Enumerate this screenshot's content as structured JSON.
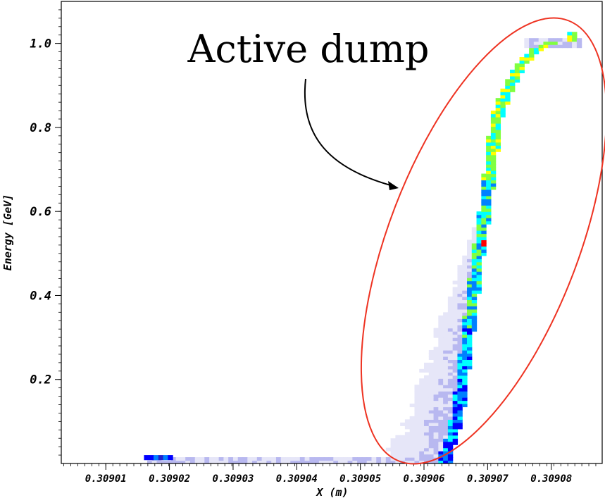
{
  "chart_data": {
    "type": "heatmap",
    "title": "",
    "xlabel": "X (m)",
    "ylabel": "Energy [GeV]",
    "xlim": [
      0.309003,
      0.309088
    ],
    "ylim": [
      0.0,
      1.1
    ],
    "x_ticks": [
      {
        "value": 0.30901,
        "label": "0.30901"
      },
      {
        "value": 0.30902,
        "label": "0.30902"
      },
      {
        "value": 0.30903,
        "label": "0.30903"
      },
      {
        "value": 0.30904,
        "label": "0.30904"
      },
      {
        "value": 0.30905,
        "label": "0.30905"
      },
      {
        "value": 0.30906,
        "label": "0.30906"
      },
      {
        "value": 0.30907,
        "label": "0.30907"
      },
      {
        "value": 0.30908,
        "label": "0.30908"
      }
    ],
    "y_ticks": [
      {
        "value": 0.2,
        "label": "0.2"
      },
      {
        "value": 0.4,
        "label": "0.4"
      },
      {
        "value": 0.6,
        "label": "0.6"
      },
      {
        "value": 0.8,
        "label": "0.8"
      },
      {
        "value": 1.0,
        "label": "1.0"
      }
    ],
    "grid": false,
    "colormap": [
      "#ffffff",
      "#e6e6f8",
      "#b8b8f0",
      "#7070e0",
      "#2020d0",
      "#0000ff",
      "#0080ff",
      "#00ffff",
      "#80ff40",
      "#ffff00",
      "#ff0000"
    ],
    "ridge": [
      {
        "x": 0.309063,
        "e": 0.02
      },
      {
        "x": 0.309064,
        "e": 0.06
      },
      {
        "x": 0.309065,
        "e": 0.12
      },
      {
        "x": 0.3090655,
        "e": 0.18
      },
      {
        "x": 0.309066,
        "e": 0.24
      },
      {
        "x": 0.3090665,
        "e": 0.3
      },
      {
        "x": 0.309067,
        "e": 0.36
      },
      {
        "x": 0.3090675,
        "e": 0.42
      },
      {
        "x": 0.309068,
        "e": 0.48
      },
      {
        "x": 0.3090685,
        "e": 0.53
      },
      {
        "x": 0.309069,
        "e": 0.58
      },
      {
        "x": 0.3090695,
        "e": 0.64
      },
      {
        "x": 0.30907,
        "e": 0.7
      },
      {
        "x": 0.3090705,
        "e": 0.76
      },
      {
        "x": 0.309071,
        "e": 0.82
      },
      {
        "x": 0.3090725,
        "e": 0.88
      },
      {
        "x": 0.3090745,
        "e": 0.94
      },
      {
        "x": 0.309077,
        "e": 0.98
      },
      {
        "x": 0.30908,
        "e": 1.0
      },
      {
        "x": 0.309083,
        "e": 1.0
      }
    ],
    "low_energy_tail": {
      "x_range": [
        0.309016,
        0.309059
      ],
      "e_range": [
        0.0,
        0.02
      ]
    },
    "peak": {
      "x": 0.309069,
      "e": 0.52
    },
    "annotation": {
      "text": "Active dump",
      "ellipse_color": "#ee3322",
      "arrow_color": "#000000"
    }
  }
}
